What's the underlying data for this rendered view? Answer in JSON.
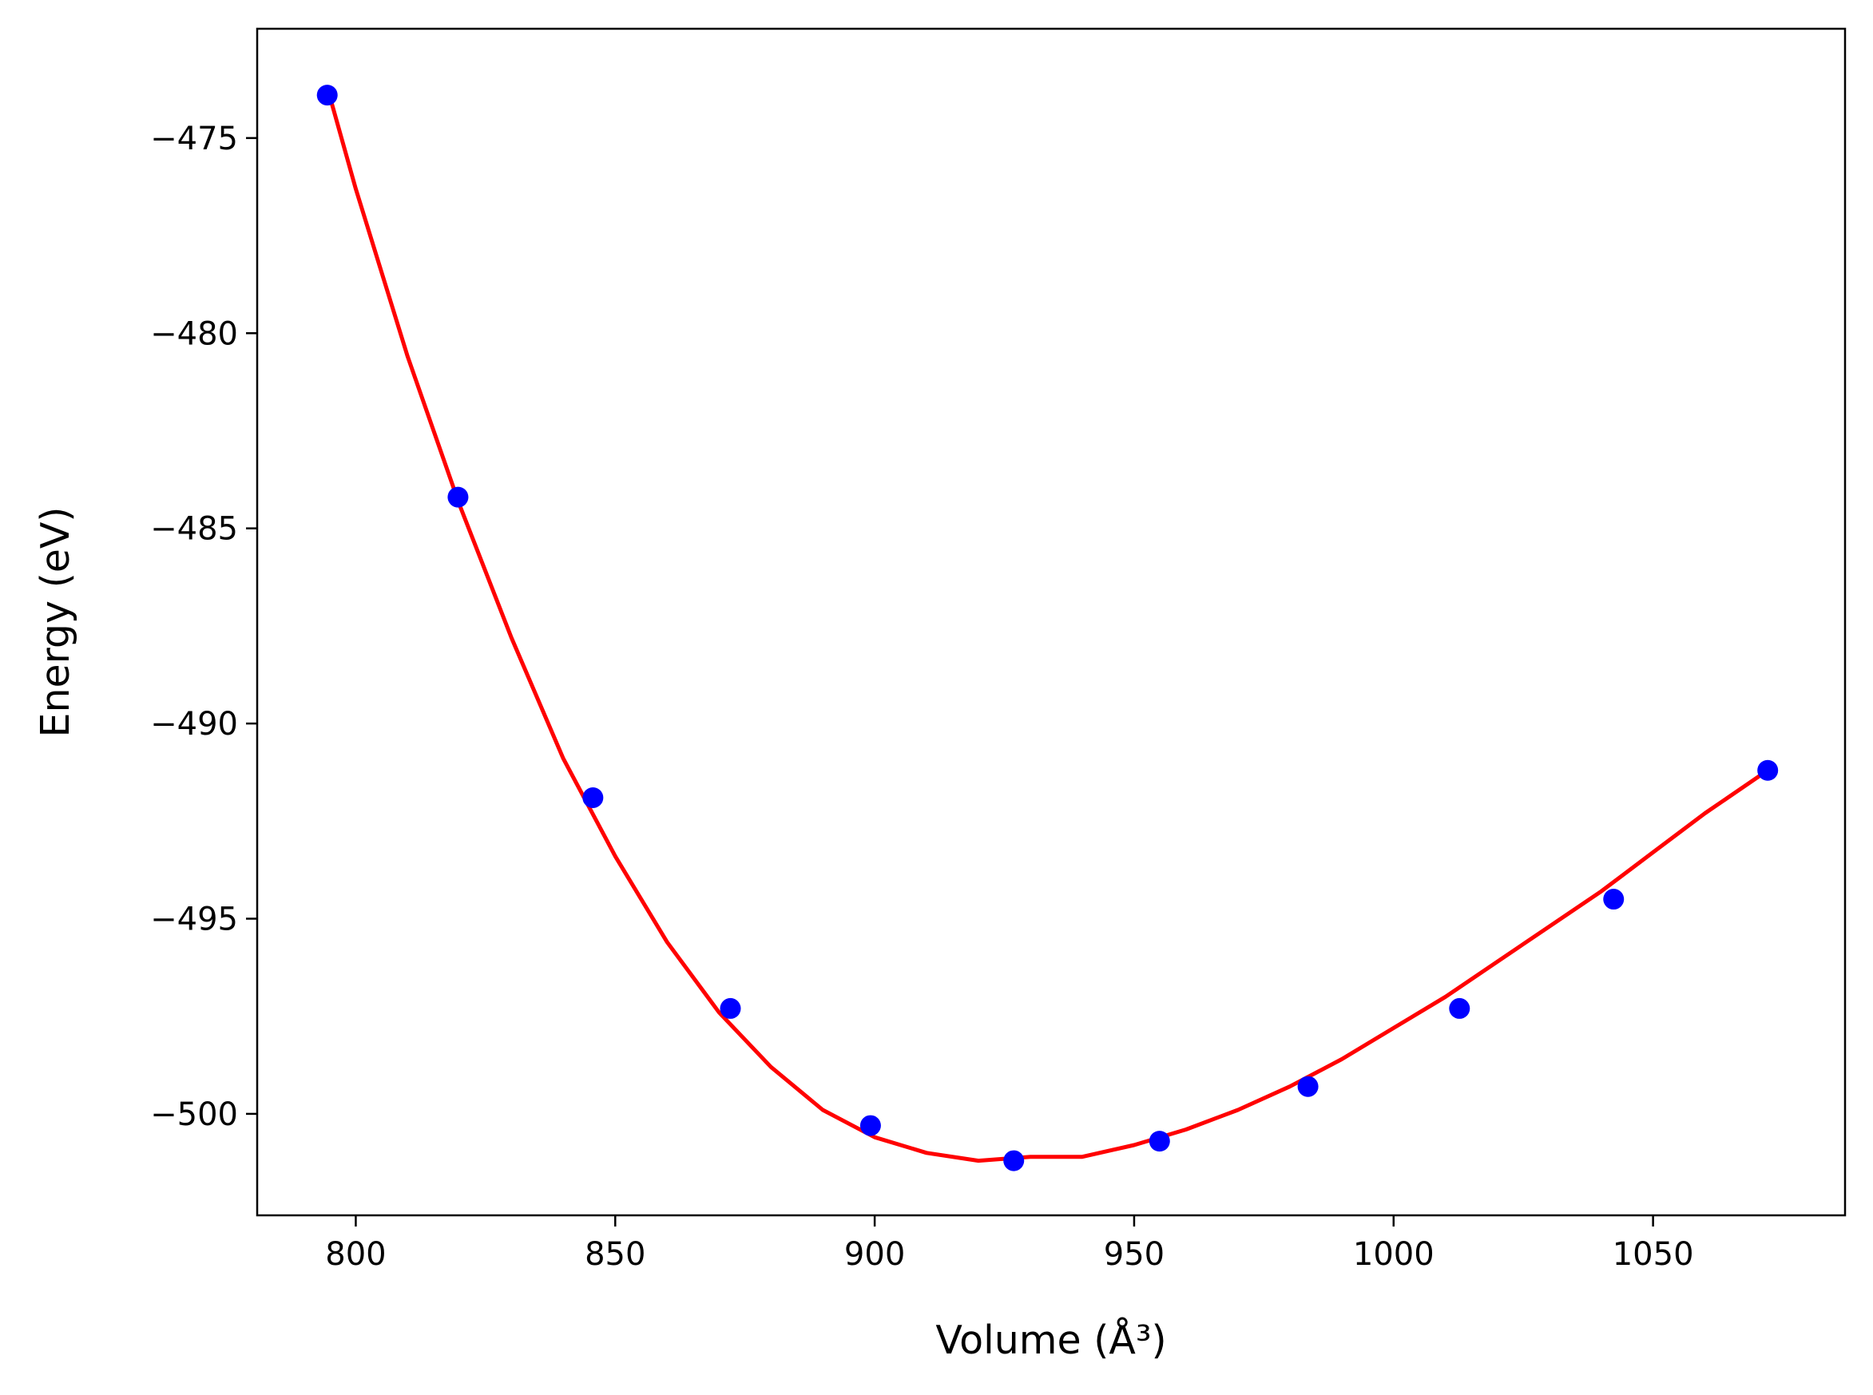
{
  "chart_data": {
    "type": "scatter",
    "xlabel": "Volume (Å³)",
    "ylabel": "Energy (eV)",
    "xlim": [
      781,
      1087
    ],
    "ylim": [
      -502.6,
      -472.2
    ],
    "xticks": [
      800,
      850,
      900,
      950,
      1000,
      1050
    ],
    "xtick_labels": [
      "800",
      "850",
      "900",
      "950",
      "1000",
      "1050"
    ],
    "yticks": [
      -475,
      -480,
      -485,
      -490,
      -495,
      -500
    ],
    "ytick_labels": [
      "−475",
      "−480",
      "−485",
      "−490",
      "−495",
      "−500"
    ],
    "grid": false,
    "series": [
      {
        "kind": "scatter",
        "color": "#0000ff",
        "x": [
          794.5,
          819.7,
          845.7,
          872.2,
          899.2,
          926.8,
          954.9,
          983.5,
          1012.7,
          1042.4,
          1072.1
        ],
        "y": [
          -473.9,
          -484.2,
          -491.9,
          -497.3,
          -500.3,
          -501.2,
          -500.7,
          -499.3,
          -497.3,
          -494.5,
          -491.2
        ]
      },
      {
        "kind": "line",
        "color": "#ff0000",
        "x": [
          794.5,
          800,
          810,
          820,
          830,
          840,
          850,
          860,
          870,
          880,
          890,
          900,
          910,
          920,
          930,
          935,
          940,
          950,
          960,
          970,
          980,
          990,
          1000,
          1010,
          1020,
          1030,
          1040,
          1050,
          1060,
          1072.1
        ],
        "y": [
          -473.7,
          -476.3,
          -480.6,
          -484.4,
          -487.8,
          -490.9,
          -493.4,
          -495.6,
          -497.4,
          -498.8,
          -499.9,
          -500.6,
          -501.0,
          -501.2,
          -501.1,
          -501.1,
          -501.1,
          -500.8,
          -500.4,
          -499.9,
          -499.3,
          -498.6,
          -497.8,
          -497.0,
          -496.1,
          -495.2,
          -494.3,
          -493.3,
          -492.3,
          -491.2
        ]
      }
    ]
  }
}
